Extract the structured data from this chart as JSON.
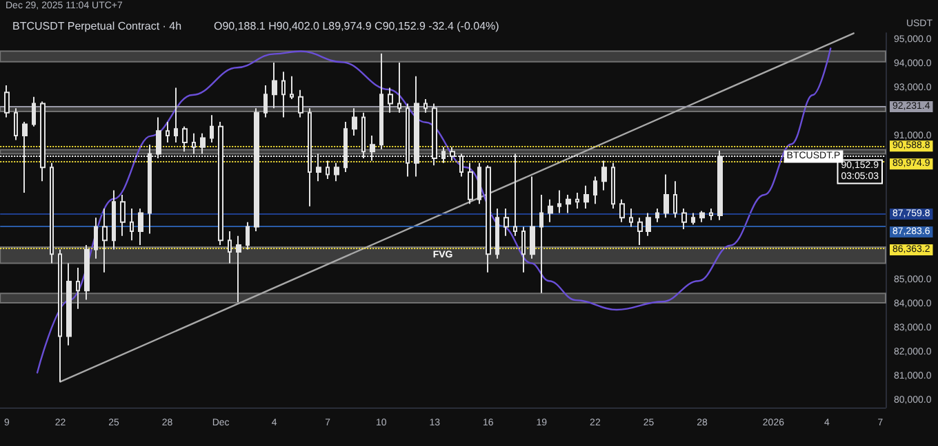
{
  "chart_data": {
    "type": "candlestick",
    "title": "BTCUSDT Perpetual Contract · 4h",
    "subtitle": "O90,188.1 H90,402.0 L89,974.9 C90,152.9 -32.4 (-0.04%)",
    "annotations": [
      "Dec 29, 2025 11:04 UTC+7",
      "USDT",
      {
        "text": "BTCUSDT.P",
        "x": "2026-01-03T06:00",
        "y": 90152.9
      }
    ],
    "xlim": [
      "2025-11-18T15:00",
      "2026-01-07T07:00"
    ],
    "xticks": [
      {
        "value": "2025-11-19",
        "label": "9"
      },
      {
        "value": "2025-11-22",
        "label": "22"
      },
      {
        "value": "2025-11-25",
        "label": "25"
      },
      {
        "value": "2025-11-28",
        "label": "28"
      },
      {
        "value": "2025-12-01",
        "label": "Dec"
      },
      {
        "value": "2025-12-04",
        "label": "4"
      },
      {
        "value": "2025-12-07",
        "label": "7"
      },
      {
        "value": "2025-12-10",
        "label": "10"
      },
      {
        "value": "2025-12-13",
        "label": "13"
      },
      {
        "value": "2025-12-16",
        "label": "16"
      },
      {
        "value": "2025-12-19",
        "label": "19"
      },
      {
        "value": "2025-12-22",
        "label": "22"
      },
      {
        "value": "2025-12-25",
        "label": "25"
      },
      {
        "value": "2025-12-28",
        "label": "28"
      },
      {
        "value": "2026-01-01",
        "label": "2026"
      },
      {
        "value": "2026-01-04",
        "label": "4"
      },
      {
        "value": "2026-01-07",
        "label": "7"
      }
    ],
    "ylim": [
      79700,
      95300
    ],
    "yticks": [
      {
        "value": 80000,
        "label": "80,000.0"
      },
      {
        "value": 81000,
        "label": "81,000.0"
      },
      {
        "value": 82000,
        "label": "82,000.0"
      },
      {
        "value": 83000,
        "label": "83,000.0"
      },
      {
        "value": 84000,
        "label": "84,000.0"
      },
      {
        "value": 85000,
        "label": "85,000.0"
      },
      {
        "value": 91000,
        "label": "91,000.0"
      },
      {
        "value": 93000,
        "label": "93,000.0"
      },
      {
        "value": 94000,
        "label": "94,000.0"
      },
      {
        "value": 95000,
        "label": "95,000.0"
      }
    ],
    "marker": "none",
    "series": [
      {
        "color": "#e3e3e3",
        "x": [
          "2025-11-19T00:00",
          "2025-11-19T12:00",
          "2025-11-20T00:00",
          "2025-11-20T12:00",
          "2025-11-21T00:00",
          "2025-11-21T12:00",
          "2025-11-22T00:00",
          "2025-11-22T12:00",
          "2025-11-23T00:00",
          "2025-11-23T12:00",
          "2025-11-24T00:00",
          "2025-11-24T12:00",
          "2025-11-25T00:00",
          "2025-11-25T12:00",
          "2025-11-26T00:00",
          "2025-11-26T12:00",
          "2025-11-27T00:00",
          "2025-11-27T12:00",
          "2025-11-28T00:00",
          "2025-11-28T12:00",
          "2025-11-29T00:00",
          "2025-11-29T12:00",
          "2025-11-30T00:00",
          "2025-11-30T12:00",
          "2025-12-01T00:00",
          "2025-12-01T12:00",
          "2025-12-02T00:00",
          "2025-12-02T12:00",
          "2025-12-03T00:00",
          "2025-12-03T12:00",
          "2025-12-04T00:00",
          "2025-12-04T12:00",
          "2025-12-05T00:00",
          "2025-12-05T12:00",
          "2025-12-06T00:00",
          "2025-12-06T12:00",
          "2025-12-07T00:00",
          "2025-12-07T12:00",
          "2025-12-08T00:00",
          "2025-12-08T12:00",
          "2025-12-09T00:00",
          "2025-12-09T12:00",
          "2025-12-10T00:00",
          "2025-12-10T12:00",
          "2025-12-11T00:00",
          "2025-12-11T12:00",
          "2025-12-12T00:00",
          "2025-12-12T12:00",
          "2025-12-13T00:00",
          "2025-12-13T12:00",
          "2025-12-14T00:00",
          "2025-12-14T12:00",
          "2025-12-15T00:00",
          "2025-12-15T12:00",
          "2025-12-16T00:00",
          "2025-12-16T12:00",
          "2025-12-17T00:00",
          "2025-12-17T12:00",
          "2025-12-18T00:00",
          "2025-12-18T12:00",
          "2025-12-19T00:00",
          "2025-12-19T12:00",
          "2025-12-20T00:00",
          "2025-12-20T12:00",
          "2025-12-21T00:00",
          "2025-12-21T12:00",
          "2025-12-22T00:00",
          "2025-12-22T12:00",
          "2025-12-23T00:00",
          "2025-12-23T12:00",
          "2025-12-24T00:00",
          "2025-12-24T12:00",
          "2025-12-25T00:00",
          "2025-12-25T12:00",
          "2025-12-26T00:00",
          "2025-12-26T12:00",
          "2025-12-27T00:00",
          "2025-12-27T12:00",
          "2025-12-28T00:00",
          "2025-12-28T12:00",
          "2025-12-29T00:00"
        ],
        "ohlc": [
          [
            92830,
            93120,
            91790,
            91980
          ],
          [
            91980,
            92170,
            90840,
            91030
          ],
          [
            91030,
            91600,
            88650,
            91500
          ],
          [
            91500,
            92640,
            91410,
            92360
          ],
          [
            92360,
            92450,
            89130,
            89700
          ],
          [
            89700,
            89890,
            85710,
            86090
          ],
          [
            86090,
            86280,
            80770,
            82670
          ],
          [
            82670,
            85710,
            82290,
            84950
          ],
          [
            84950,
            85520,
            83810,
            84570
          ],
          [
            84570,
            86470,
            84190,
            86280
          ],
          [
            86280,
            87610,
            85900,
            87230
          ],
          [
            87230,
            87990,
            85330,
            86660
          ],
          [
            86660,
            88750,
            86280,
            88270
          ],
          [
            88270,
            88560,
            86850,
            87420
          ],
          [
            87420,
            87990,
            86660,
            87040
          ],
          [
            87040,
            87990,
            86470,
            87800
          ],
          [
            87800,
            90650,
            86940,
            90270
          ],
          [
            90270,
            91790,
            90080,
            91220
          ],
          [
            91220,
            91600,
            90740,
            91030
          ],
          [
            91030,
            93020,
            90740,
            91310
          ],
          [
            91310,
            91410,
            90360,
            90740
          ],
          [
            90740,
            91120,
            90270,
            90550
          ],
          [
            90550,
            91120,
            90270,
            90930
          ],
          [
            90930,
            91880,
            90740,
            91410
          ],
          [
            91410,
            91600,
            86470,
            86660
          ],
          [
            86660,
            87040,
            85710,
            86180
          ],
          [
            86180,
            86850,
            84090,
            86470
          ],
          [
            86470,
            87420,
            86280,
            87230
          ],
          [
            87230,
            92170,
            87040,
            91980
          ],
          [
            91980,
            93120,
            91790,
            92740
          ],
          [
            92740,
            94070,
            92170,
            93310
          ],
          [
            93310,
            93690,
            91790,
            92740
          ],
          [
            92740,
            93500,
            92550,
            92640
          ],
          [
            92640,
            92930,
            91790,
            91980
          ],
          [
            91980,
            92170,
            88080,
            89510
          ],
          [
            89510,
            90270,
            89130,
            89700
          ],
          [
            89700,
            89980,
            89220,
            89410
          ],
          [
            89410,
            89890,
            89130,
            89700
          ],
          [
            89700,
            91600,
            89510,
            91310
          ],
          [
            91310,
            92170,
            91030,
            91790
          ],
          [
            91790,
            91980,
            90080,
            90360
          ],
          [
            90360,
            91030,
            89980,
            90650
          ],
          [
            90650,
            94450,
            90460,
            92740
          ],
          [
            92740,
            93020,
            91980,
            92360
          ],
          [
            92360,
            94070,
            91980,
            92170
          ],
          [
            92170,
            92360,
            89320,
            89890
          ],
          [
            89890,
            93500,
            89320,
            92360
          ],
          [
            92360,
            92550,
            91980,
            92170
          ],
          [
            92170,
            92360,
            89790,
            90080
          ],
          [
            90080,
            90550,
            89890,
            90360
          ],
          [
            90360,
            90550,
            89980,
            90170
          ],
          [
            90170,
            90270,
            89320,
            89510
          ],
          [
            89510,
            89890,
            88180,
            88370
          ],
          [
            88370,
            89890,
            88180,
            89700
          ],
          [
            89700,
            89790,
            85330,
            86090
          ],
          [
            86090,
            87990,
            85900,
            87610
          ],
          [
            87610,
            87990,
            86850,
            87230
          ],
          [
            87230,
            90270,
            86850,
            87040
          ],
          [
            87040,
            87230,
            85330,
            86090
          ],
          [
            86090,
            89320,
            85900,
            87230
          ],
          [
            87230,
            88560,
            84470,
            87800
          ],
          [
            87800,
            88370,
            87420,
            88080
          ],
          [
            88080,
            88750,
            87800,
            88180
          ],
          [
            88180,
            88560,
            87800,
            88370
          ],
          [
            88370,
            88650,
            87990,
            88270
          ],
          [
            88270,
            88940,
            87990,
            88560
          ],
          [
            88560,
            89320,
            88180,
            89130
          ],
          [
            89130,
            89980,
            88750,
            89700
          ],
          [
            89700,
            89890,
            87990,
            88180
          ],
          [
            88180,
            88370,
            87420,
            87610
          ],
          [
            87610,
            87990,
            87230,
            87420
          ],
          [
            87420,
            87610,
            86470,
            87040
          ],
          [
            87040,
            87800,
            86850,
            87610
          ],
          [
            87610,
            87990,
            87420,
            87800
          ],
          [
            87800,
            89410,
            87610,
            88560
          ],
          [
            88560,
            89130,
            87610,
            87800
          ],
          [
            87800,
            87990,
            87130,
            87420
          ],
          [
            87420,
            87800,
            87320,
            87610
          ],
          [
            87610,
            87890,
            87420,
            87800
          ],
          [
            87800,
            87990,
            87510,
            87700
          ],
          [
            87700,
            90400,
            87510,
            90150
          ]
        ]
      },
      {
        "type": "line",
        "color": "#a8a8a8",
        "x": [
          "2025-11-22T00:00",
          "2026-01-05T12:00"
        ],
        "values": [
          80770,
          95290
        ]
      },
      {
        "type": "line",
        "color": "#6a4fd8",
        "x": [
          "2025-11-20T17:00",
          "2025-11-22T12:00",
          "2025-11-25T00:00",
          "2025-11-27T02:00",
          "2025-11-29T10:00",
          "2025-12-01T22:00",
          "2025-12-04T00:00",
          "2025-12-05T12:00",
          "2025-12-07T19:00",
          "2025-12-10T10:00",
          "2025-12-12T12:00",
          "2025-12-14T19:00",
          "2025-12-16T19:00",
          "2025-12-18T10:00",
          "2025-12-19T10:00",
          "2025-12-20T22:00",
          "2025-12-23T05:00",
          "2025-12-25T19:00",
          "2025-12-27T19:00",
          "2025-12-29T14:00",
          "2025-12-31T12:00",
          "2026-01-02T00:00",
          "2026-01-03T05:00",
          "2026-01-04T05:00"
        ],
        "values": [
          81150,
          84170,
          88390,
          91010,
          92720,
          93860,
          94430,
          94540,
          94090,
          92950,
          91580,
          89700,
          87250,
          85710,
          84970,
          84170,
          83770,
          84110,
          84970,
          86450,
          88560,
          90670,
          92720,
          94660
        ]
      }
    ],
    "bands": [
      {
        "axis": "y",
        "from": 94100,
        "to": 94550,
        "color": "#4d4d4d"
      },
      {
        "axis": "y",
        "from": 92030,
        "to": 92231.4,
        "color": "#4d4d4d"
      },
      {
        "axis": "y",
        "from": 90270,
        "to": 90440,
        "color": "#4d4d4d"
      },
      {
        "axis": "y",
        "from": 85710,
        "to": 86380,
        "label": "FVG",
        "color": "#4d4d4d"
      },
      {
        "axis": "y",
        "from": 84060,
        "to": 84450,
        "color": "#4d4d4d"
      }
    ],
    "ref_lines": [
      {
        "axis": "y",
        "value": 92231.4,
        "label": "92,231.4",
        "color": "#9a9aa8",
        "line_style": "solid"
      },
      {
        "axis": "y",
        "value": 90588.8,
        "label": "90,588.8",
        "color": "#f5e23a",
        "line_style": "dotted"
      },
      {
        "axis": "y",
        "value": 90152.9,
        "label": "90,152.9\n03:05:03",
        "color": "#ffffff",
        "line_style": "dotted"
      },
      {
        "axis": "y",
        "value": 89974.9,
        "label": "89,974.9",
        "color": "#f5e23a",
        "line_style": "dotted"
      },
      {
        "axis": "y",
        "value": 87759.8,
        "label": "87,759.8",
        "color": "#1f3f8f",
        "line_style": "solid"
      },
      {
        "axis": "y",
        "value": 87283.6,
        "label": "87,283.6",
        "color": "#2a5ca8",
        "line_style": "solid"
      },
      {
        "axis": "y",
        "value": 86363.2,
        "label": "86,363.2",
        "color": "#f5e23a",
        "line_style": "dotted"
      }
    ]
  }
}
